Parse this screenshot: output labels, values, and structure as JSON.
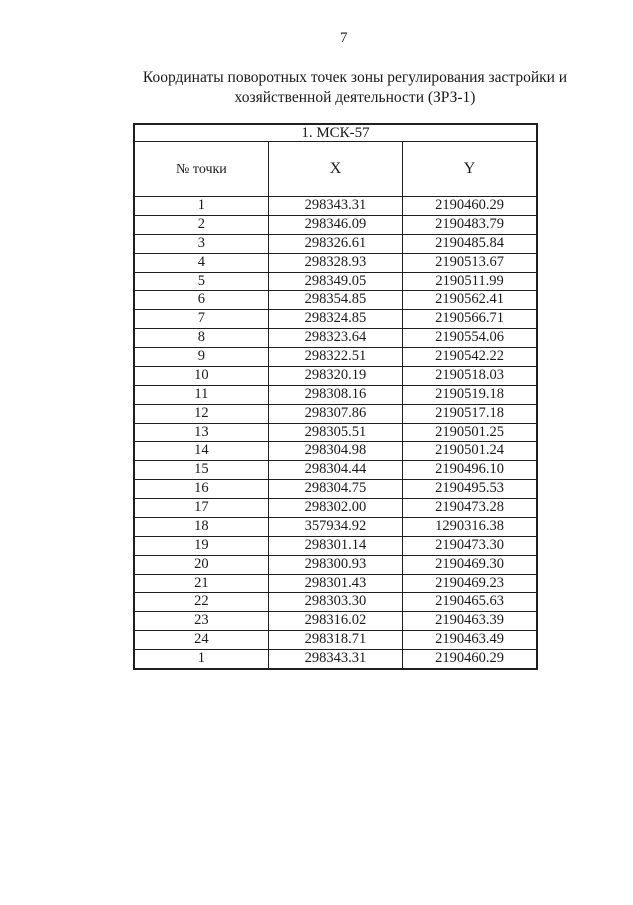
{
  "page_number": "7",
  "title": {
    "line1": "Координаты поворотных точек зоны регулирования застройки и",
    "line2": "хозяйственной деятельности (ЗРЗ-1)"
  },
  "table": {
    "caption": "1. МСК-57",
    "columns": [
      "№ точки",
      "X",
      "Y"
    ],
    "rows": [
      [
        "1",
        "298343.31",
        "2190460.29"
      ],
      [
        "2",
        "298346.09",
        "2190483.79"
      ],
      [
        "3",
        "298326.61",
        "2190485.84"
      ],
      [
        "4",
        "298328.93",
        "2190513.67"
      ],
      [
        "5",
        "298349.05",
        "2190511.99"
      ],
      [
        "6",
        "298354.85",
        "2190562.41"
      ],
      [
        "7",
        "298324.85",
        "2190566.71"
      ],
      [
        "8",
        "298323.64",
        "2190554.06"
      ],
      [
        "9",
        "298322.51",
        "2190542.22"
      ],
      [
        "10",
        "298320.19",
        "2190518.03"
      ],
      [
        "11",
        "298308.16",
        "2190519.18"
      ],
      [
        "12",
        "298307.86",
        "2190517.18"
      ],
      [
        "13",
        "298305.51",
        "2190501.25"
      ],
      [
        "14",
        "298304.98",
        "2190501.24"
      ],
      [
        "15",
        "298304.44",
        "2190496.10"
      ],
      [
        "16",
        "298304.75",
        "2190495.53"
      ],
      [
        "17",
        "298302.00",
        "2190473.28"
      ],
      [
        "18",
        "357934.92",
        "1290316.38"
      ],
      [
        "19",
        "298301.14",
        "2190473.30"
      ],
      [
        "20",
        "298300.93",
        "2190469.30"
      ],
      [
        "21",
        "298301.43",
        "2190469.23"
      ],
      [
        "22",
        "298303.30",
        "2190465.63"
      ],
      [
        "23",
        "298316.02",
        "2190463.39"
      ],
      [
        "24",
        "298318.71",
        "2190463.49"
      ],
      [
        "1",
        "298343.31",
        "2190460.29"
      ]
    ]
  },
  "colors": {
    "text": "#1a1a1a",
    "border": "#1f1f1f",
    "background": "#ffffff"
  }
}
